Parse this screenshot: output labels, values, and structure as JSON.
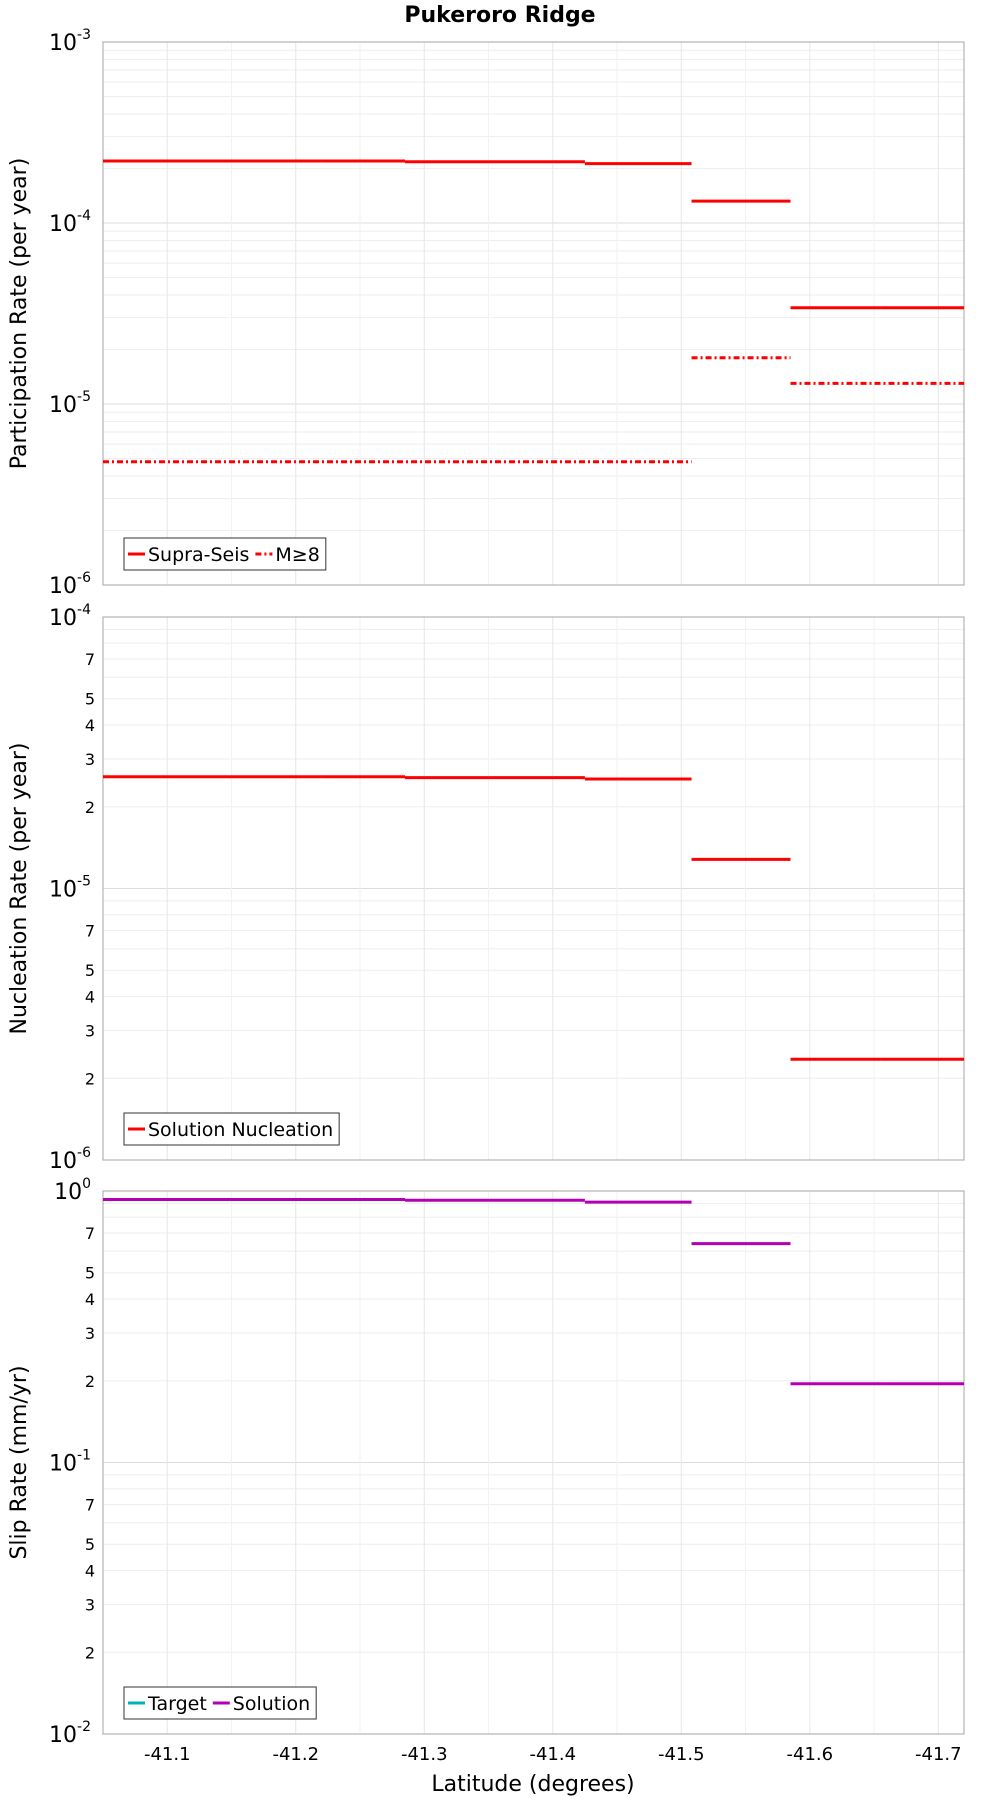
{
  "title": "Pukeroro Ridge",
  "xlabel": "Latitude (degrees)",
  "xticks": [
    -41.1,
    -41.2,
    -41.3,
    -41.4,
    -41.5,
    -41.6,
    -41.7
  ],
  "chart_data": [
    {
      "type": "line",
      "ylabel": "Participation Rate (per year)",
      "yscale": "log",
      "ylim": [
        1e-06,
        0.001
      ],
      "major_ticks": [
        {
          "base": "10",
          "exp": "-6"
        },
        {
          "base": "10",
          "exp": "-5"
        },
        {
          "base": "10",
          "exp": "-4"
        },
        {
          "base": "10",
          "exp": "-3"
        }
      ],
      "minor_tick_labels": false,
      "xlim": [
        -41.05,
        -41.72
      ],
      "grid": true,
      "legend_position": "bottom-left",
      "series": [
        {
          "name": "Supra-Seis",
          "color": "#ff0000",
          "dash": "solid",
          "segments": [
            {
              "x": [
                -41.05,
                -41.15
              ],
              "y": 0.00022
            },
            {
              "x": [
                -41.15,
                -41.22
              ],
              "y": 0.00022
            },
            {
              "x": [
                -41.22,
                -41.285
              ],
              "y": 0.00022
            },
            {
              "x": [
                -41.285,
                -41.35
              ],
              "y": 0.000218
            },
            {
              "x": [
                -41.35,
                -41.425
              ],
              "y": 0.000218
            },
            {
              "x": [
                -41.425,
                -41.508
              ],
              "y": 0.000213
            },
            {
              "x": [
                -41.508,
                -41.585
              ],
              "y": 0.000132
            },
            {
              "x": [
                -41.585,
                -41.655
              ],
              "y": 3.4e-05
            },
            {
              "x": [
                -41.655,
                -41.72
              ],
              "y": 3.4e-05
            }
          ]
        },
        {
          "name": "M≥8",
          "color": "#ff0000",
          "dash": "dashdot",
          "segments": [
            {
              "x": [
                -41.05,
                -41.508
              ],
              "y": 4.8e-06
            },
            {
              "x": [
                -41.508,
                -41.585
              ],
              "y": 1.8e-05
            },
            {
              "x": [
                -41.585,
                -41.72
              ],
              "y": 1.3e-05
            }
          ]
        }
      ]
    },
    {
      "type": "line",
      "ylabel": "Nucleation Rate (per year)",
      "yscale": "log",
      "ylim": [
        1e-06,
        0.0001
      ],
      "major_ticks": [
        {
          "base": "10",
          "exp": "-6"
        },
        {
          "base": "10",
          "exp": "-5"
        },
        {
          "base": "10",
          "exp": "-4"
        }
      ],
      "minor_tick_labels": true,
      "xlim": [
        -41.05,
        -41.72
      ],
      "grid": true,
      "legend_position": "bottom-left",
      "series": [
        {
          "name": "Solution Nucleation",
          "color": "#ff0000",
          "dash": "solid",
          "segments": [
            {
              "x": [
                -41.05,
                -41.15
              ],
              "y": 2.58e-05
            },
            {
              "x": [
                -41.15,
                -41.22
              ],
              "y": 2.58e-05
            },
            {
              "x": [
                -41.22,
                -41.285
              ],
              "y": 2.58e-05
            },
            {
              "x": [
                -41.285,
                -41.35
              ],
              "y": 2.56e-05
            },
            {
              "x": [
                -41.35,
                -41.425
              ],
              "y": 2.56e-05
            },
            {
              "x": [
                -41.425,
                -41.508
              ],
              "y": 2.53e-05
            },
            {
              "x": [
                -41.508,
                -41.585
              ],
              "y": 1.28e-05
            },
            {
              "x": [
                -41.585,
                -41.655
              ],
              "y": 2.35e-06
            },
            {
              "x": [
                -41.655,
                -41.72
              ],
              "y": 2.35e-06
            }
          ]
        }
      ]
    },
    {
      "type": "line",
      "ylabel": "Slip Rate (mm/yr)",
      "yscale": "log",
      "ylim": [
        0.01,
        1
      ],
      "major_ticks": [
        {
          "base": "10",
          "exp": "-2"
        },
        {
          "base": "10",
          "exp": "-1"
        },
        {
          "base": "10",
          "exp": "0"
        }
      ],
      "minor_tick_labels": true,
      "xlim": [
        -41.05,
        -41.72
      ],
      "grid": true,
      "legend_position": "bottom-left",
      "series": [
        {
          "name": "Target",
          "color": "#00b3b3",
          "dash": "solid",
          "segments": []
        },
        {
          "name": "Solution",
          "color": "#b300b3",
          "dash": "solid",
          "segments": [
            {
              "x": [
                -41.05,
                -41.15
              ],
              "y": 0.93
            },
            {
              "x": [
                -41.15,
                -41.22
              ],
              "y": 0.93
            },
            {
              "x": [
                -41.22,
                -41.285
              ],
              "y": 0.93
            },
            {
              "x": [
                -41.285,
                -41.35
              ],
              "y": 0.925
            },
            {
              "x": [
                -41.35,
                -41.425
              ],
              "y": 0.925
            },
            {
              "x": [
                -41.425,
                -41.508
              ],
              "y": 0.91
            },
            {
              "x": [
                -41.508,
                -41.585
              ],
              "y": 0.64
            },
            {
              "x": [
                -41.585,
                -41.655
              ],
              "y": 0.195
            },
            {
              "x": [
                -41.655,
                -41.72
              ],
              "y": 0.195
            }
          ]
        }
      ]
    }
  ]
}
